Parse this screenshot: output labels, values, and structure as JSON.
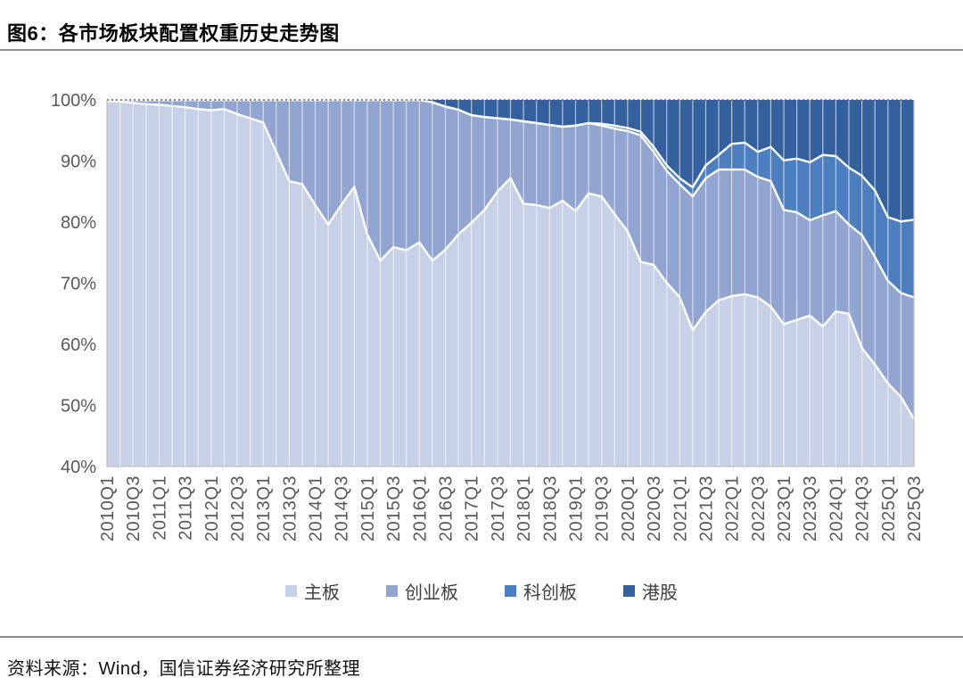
{
  "figure": {
    "title": "图6：各市场板块配置权重历史走势图",
    "source": "资料来源：Wind，国信证券经济研究所整理"
  },
  "chart_data": {
    "type": "area",
    "stacked": true,
    "unit": "%",
    "title": "各市场板块配置权重历史走势图",
    "ylim": [
      40,
      100
    ],
    "y_ticks": [
      "100%",
      "90%",
      "80%",
      "70%",
      "60%",
      "50%",
      "40%"
    ],
    "x_tick_step": 2,
    "grid": {
      "vertical_lines": true,
      "top_dotted_line": true
    },
    "legend_position": "bottom",
    "x": [
      "2010Q1",
      "2010Q2",
      "2010Q3",
      "2010Q4",
      "2011Q1",
      "2011Q2",
      "2011Q3",
      "2011Q4",
      "2012Q1",
      "2012Q2",
      "2012Q3",
      "2012Q4",
      "2013Q1",
      "2013Q2",
      "2013Q3",
      "2013Q4",
      "2014Q1",
      "2014Q2",
      "2014Q3",
      "2014Q4",
      "2015Q1",
      "2015Q2",
      "2015Q3",
      "2015Q4",
      "2016Q1",
      "2016Q2",
      "2016Q3",
      "2016Q4",
      "2017Q1",
      "2017Q2",
      "2017Q3",
      "2017Q4",
      "2018Q1",
      "2018Q2",
      "2018Q3",
      "2018Q4",
      "2019Q1",
      "2019Q2",
      "2019Q3",
      "2019Q4",
      "2020Q1",
      "2020Q2",
      "2020Q3",
      "2020Q4",
      "2021Q1",
      "2021Q2",
      "2021Q3",
      "2021Q4",
      "2022Q1",
      "2022Q2",
      "2022Q3",
      "2022Q4",
      "2023Q1",
      "2023Q2",
      "2023Q3",
      "2023Q4",
      "2024Q1",
      "2024Q2",
      "2024Q3",
      "2024Q4",
      "2025Q1",
      "2025Q2",
      "2025Q3"
    ],
    "series": [
      {
        "key": "main-board",
        "name": "主板",
        "color": "#c6d0e7",
        "values": [
          99.8,
          99.7,
          99.5,
          99.3,
          99.2,
          99.0,
          98.8,
          98.5,
          98.3,
          98.5,
          97.7,
          97.0,
          96.3,
          91.5,
          86.7,
          86.2,
          82.8,
          79.6,
          82.8,
          85.8,
          78.0,
          73.7,
          75.9,
          75.4,
          76.7,
          73.7,
          75.5,
          78.0,
          79.9,
          82.0,
          85.0,
          87.2,
          83.0,
          82.8,
          82.3,
          83.5,
          81.8,
          84.7,
          84.2,
          81.3,
          78.5,
          73.5,
          73.0,
          70.1,
          67.7,
          62.3,
          65.3,
          67.2,
          67.9,
          68.2,
          67.7,
          66.2,
          63.3,
          64.0,
          64.7,
          62.9,
          65.4,
          65.0,
          59.4,
          56.7,
          53.6,
          51.4,
          47.8
        ]
      },
      {
        "key": "chinext",
        "name": "创业板",
        "color": "#91a5d0",
        "values": [
          0.2,
          0.3,
          0.5,
          0.7,
          0.8,
          1.0,
          1.2,
          1.5,
          1.7,
          1.5,
          2.3,
          3.0,
          3.7,
          8.5,
          13.3,
          13.8,
          17.2,
          20.4,
          17.2,
          14.2,
          22.0,
          26.3,
          24.1,
          24.6,
          23.3,
          25.9,
          23.4,
          20.4,
          17.6,
          15.2,
          12.0,
          9.6,
          13.5,
          13.4,
          13.6,
          12.1,
          14.0,
          11.5,
          11.6,
          14.0,
          16.4,
          20.7,
          18.5,
          18.3,
          18.5,
          21.9,
          21.9,
          21.4,
          20.7,
          20.4,
          19.7,
          20.5,
          18.7,
          17.6,
          15.6,
          18.2,
          16.4,
          14.6,
          18.5,
          17.6,
          16.8,
          17.0,
          19.9
        ]
      },
      {
        "key": "star-market",
        "name": "科创板",
        "color": "#4d7fc0",
        "values": [
          0,
          0,
          0,
          0,
          0,
          0,
          0,
          0,
          0,
          0,
          0,
          0,
          0,
          0,
          0,
          0,
          0,
          0,
          0,
          0,
          0,
          0,
          0,
          0,
          0,
          0,
          0,
          0,
          0,
          0,
          0,
          0,
          0,
          0,
          0,
          0,
          0,
          0,
          0.3,
          0.5,
          0.5,
          0.6,
          0.8,
          0.9,
          1.0,
          1.5,
          2.1,
          2.4,
          4.2,
          4.4,
          4.1,
          5.6,
          8.1,
          8.8,
          9.5,
          9.9,
          9.0,
          9.3,
          9.7,
          10.9,
          10.4,
          11.7,
          12.7
        ]
      },
      {
        "key": "hk-stocks",
        "name": "港股",
        "color": "#34619e",
        "values": [
          0,
          0,
          0,
          0,
          0,
          0,
          0,
          0,
          0,
          0,
          0,
          0,
          0,
          0,
          0,
          0,
          0,
          0,
          0,
          0,
          0,
          0,
          0,
          0,
          0,
          0.4,
          1.1,
          1.6,
          2.5,
          2.8,
          3.0,
          3.2,
          3.5,
          3.8,
          4.1,
          4.4,
          4.2,
          3.8,
          3.9,
          4.2,
          4.6,
          5.2,
          7.7,
          10.7,
          12.8,
          14.3,
          10.7,
          9.0,
          7.2,
          7.0,
          8.5,
          7.7,
          9.9,
          9.6,
          10.2,
          9.0,
          9.2,
          11.1,
          12.4,
          14.8,
          19.2,
          19.9,
          19.6
        ]
      }
    ],
    "style": {
      "boundary_line_color": "#ffffff",
      "vertical_grid_color": "rgba(255,255,255,0.62)",
      "plot_border_color": "#bfbfbf",
      "axis_label_color": "#595959",
      "top_dotted_color": "#59616e"
    }
  }
}
